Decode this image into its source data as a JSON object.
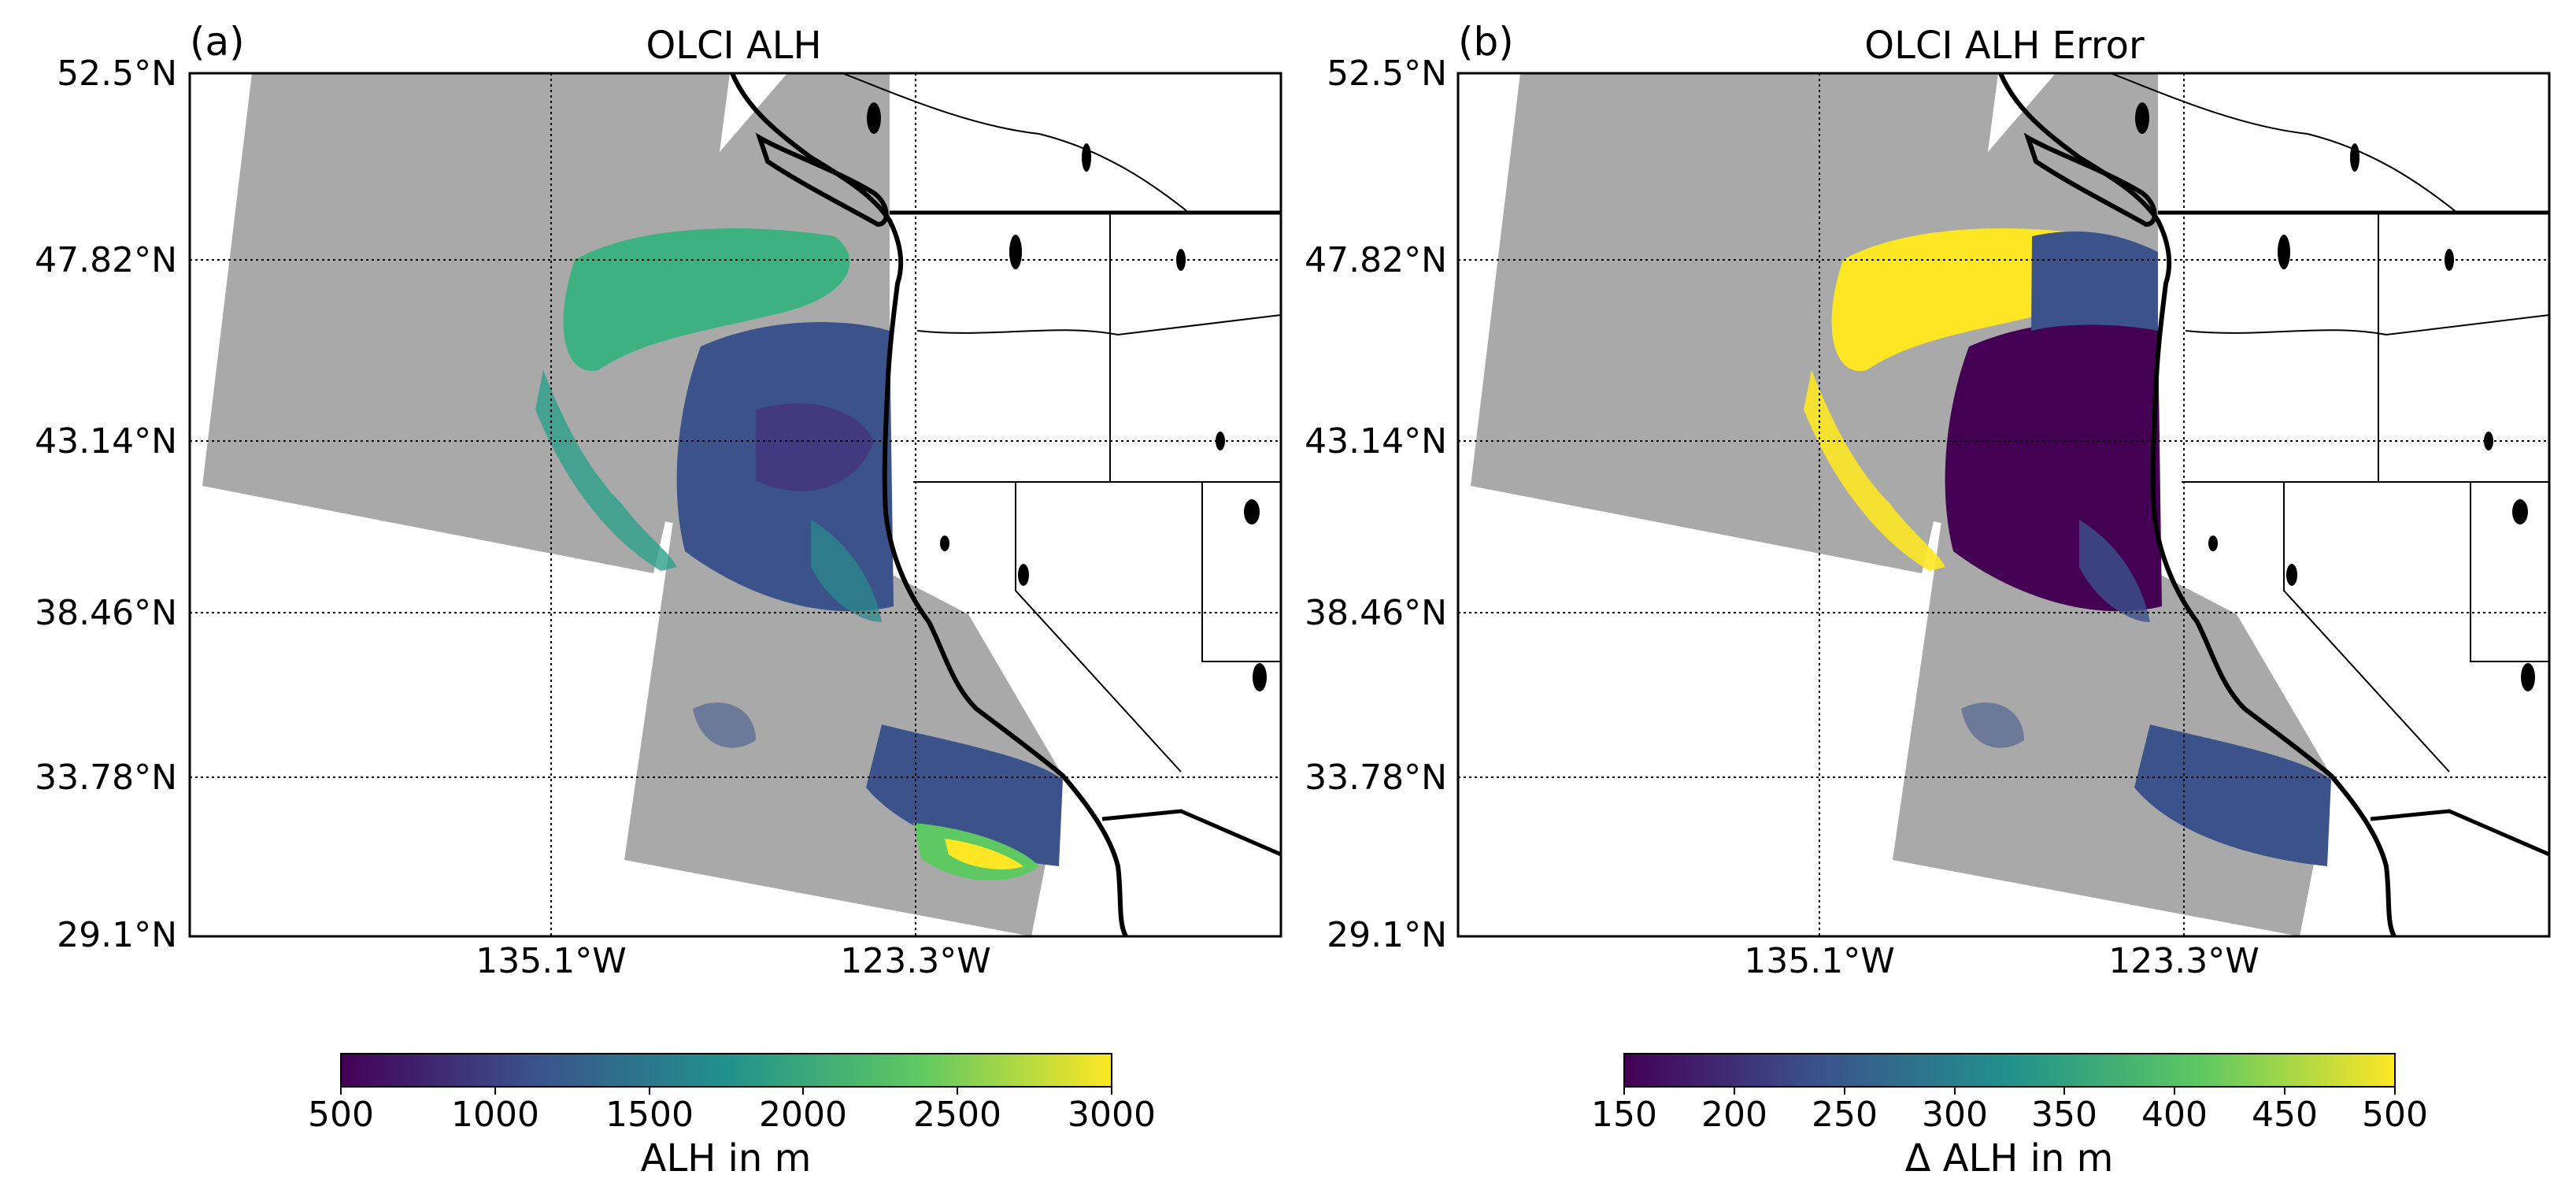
{
  "panels": [
    {
      "letter": "(a)",
      "title": "OLCI ALH",
      "lat_ticks": [
        "52.5°N",
        "47.82°N",
        "43.14°N",
        "38.46°N",
        "33.78°N",
        "29.1°N"
      ],
      "lon_ticks": [
        "135.1°W",
        "123.3°W"
      ],
      "colorbar": {
        "label": "ALH in m",
        "ticks": [
          "500",
          "1000",
          "1500",
          "2000",
          "2500",
          "3000"
        ],
        "range": [
          500,
          3000
        ],
        "colormap": "viridis"
      }
    },
    {
      "letter": "(b)",
      "title": "OLCI ALH Error",
      "lat_ticks": [
        "52.5°N",
        "47.82°N",
        "43.14°N",
        "38.46°N",
        "33.78°N",
        "29.1°N"
      ],
      "lon_ticks": [
        "135.1°W",
        "123.3°W"
      ],
      "colorbar": {
        "label": "Δ ALH in m",
        "ticks": [
          "150",
          "200",
          "250",
          "300",
          "350",
          "400",
          "450",
          "500"
        ],
        "range": [
          150,
          500
        ],
        "colormap": "viridis"
      }
    }
  ],
  "colors": {
    "swath_no_data": "#a9a9a9",
    "coastline": "#000000",
    "viridis": [
      "#440154",
      "#3b528b",
      "#21918c",
      "#5ec962",
      "#fde725"
    ]
  }
}
